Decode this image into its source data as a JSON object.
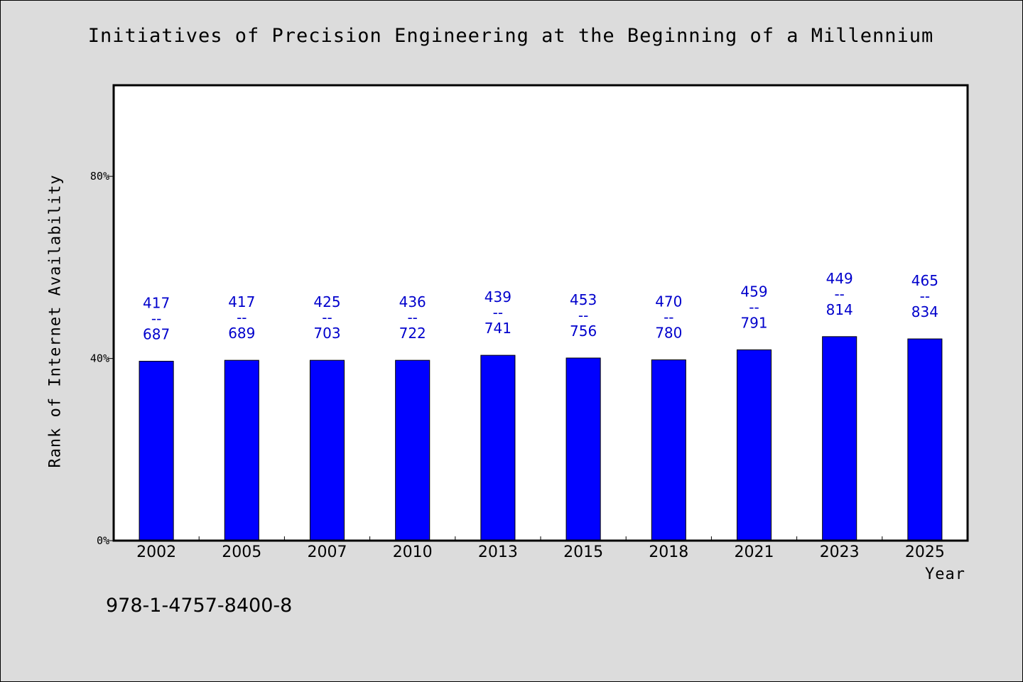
{
  "chart_data": {
    "type": "bar",
    "title": "Initiatives of Precision Engineering at the Beginning of a Millennium",
    "xlabel": "Year",
    "ylabel": "Rank of Internet Availability",
    "categories": [
      "2002",
      "2005",
      "2007",
      "2010",
      "2013",
      "2015",
      "2018",
      "2021",
      "2023",
      "2025"
    ],
    "values": [
      39.4,
      39.6,
      39.6,
      39.6,
      40.7,
      40.1,
      39.7,
      41.9,
      44.8,
      44.3
    ],
    "data_labels": [
      {
        "top": "417",
        "sep": "--",
        "bottom": "687"
      },
      {
        "top": "417",
        "sep": "--",
        "bottom": "689"
      },
      {
        "top": "425",
        "sep": "--",
        "bottom": "703"
      },
      {
        "top": "436",
        "sep": "--",
        "bottom": "722"
      },
      {
        "top": "439",
        "sep": "--",
        "bottom": "741"
      },
      {
        "top": "453",
        "sep": "--",
        "bottom": "756"
      },
      {
        "top": "470",
        "sep": "--",
        "bottom": "780"
      },
      {
        "top": "459",
        "sep": "--",
        "bottom": "791"
      },
      {
        "top": "449",
        "sep": "--",
        "bottom": "814"
      },
      {
        "top": "465",
        "sep": "--",
        "bottom": "834"
      }
    ],
    "ylim": [
      0,
      100
    ],
    "yticks": [
      0,
      40,
      80
    ],
    "ytick_labels": [
      "0%",
      "40%",
      "80%"
    ],
    "grid": false,
    "legend": "none",
    "bar_color": "#0000ff",
    "label_color": "#0000cc"
  },
  "footnote": "978-1-4757-8400-8",
  "colors": {
    "background": "#dcdcdc",
    "plot_background": "#ffffff"
  }
}
